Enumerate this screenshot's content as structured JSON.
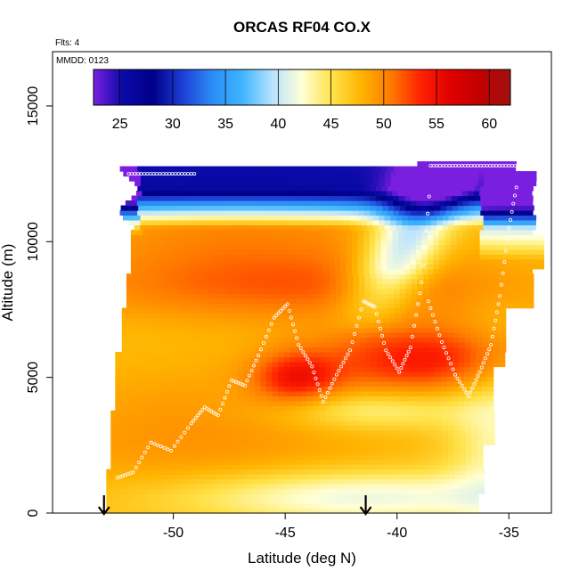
{
  "chart_data": {
    "type": "heatmap",
    "title": "ORCAS RF04 CO.X",
    "xlabel": "Latitude (deg N)",
    "ylabel": "Altitude (m)",
    "notes": [
      "Flts: 4",
      "MMDD: 0123"
    ],
    "xlim": [
      -55.4,
      -33.1
    ],
    "ylim": [
      0,
      17000
    ],
    "x_ticks": [
      -50,
      -45,
      -40,
      -35
    ],
    "y_ticks": [
      0,
      5000,
      10000,
      15000
    ],
    "colorbar": {
      "range": [
        22.5,
        62
      ],
      "ticks": [
        25,
        30,
        35,
        40,
        45,
        50,
        55,
        60
      ],
      "colors": [
        "#7a1fe0",
        "#0a0aa8",
        "#000088",
        "#1f3fd6",
        "#2b8cf5",
        "#3fb6ff",
        "#b8e2ff",
        "#ffffd6",
        "#ffe34a",
        "#ffb400",
        "#ff7a00",
        "#ff2000",
        "#e00000",
        "#c00000",
        "#a01010"
      ]
    },
    "flight_track_markers_lat": [
      -53.1,
      -41.4
    ],
    "altitude_profiles": [
      {
        "lat": [
          -52.5,
          -51.8,
          -51.0,
          -50.1,
          -49.2,
          -48.6,
          -48.0,
          -47.4,
          -46.8,
          -46.2,
          -45.5,
          -44.9,
          -44.4,
          -43.8,
          -43.3,
          -42.7,
          -42.1,
          -41.5,
          -41.0,
          -40.5,
          -39.9,
          -39.4,
          -38.9,
          -38.5
        ],
        "alt": [
          1300,
          1500,
          2600,
          2300,
          3300,
          3900,
          3600,
          4900,
          4700,
          5800,
          7200,
          7700,
          6200,
          5400,
          4100,
          5100,
          6000,
          7800,
          7600,
          6000,
          5200,
          6100,
          8500,
          12300
        ]
      },
      {
        "lat": [
          -38.6,
          -38.0,
          -37.4,
          -36.8,
          -36.3,
          -35.8,
          -35.4,
          -35.0,
          -34.6
        ],
        "alt": [
          7800,
          6300,
          5100,
          4300,
          5200,
          6200,
          8000,
          10500,
          12300
        ]
      }
    ],
    "top_leg": [
      {
        "lat_start": -52.0,
        "lat_end": -49.0,
        "alt": 12500
      },
      {
        "lat_start": -38.5,
        "lat_end": -34.5,
        "alt": 12800
      }
    ]
  }
}
